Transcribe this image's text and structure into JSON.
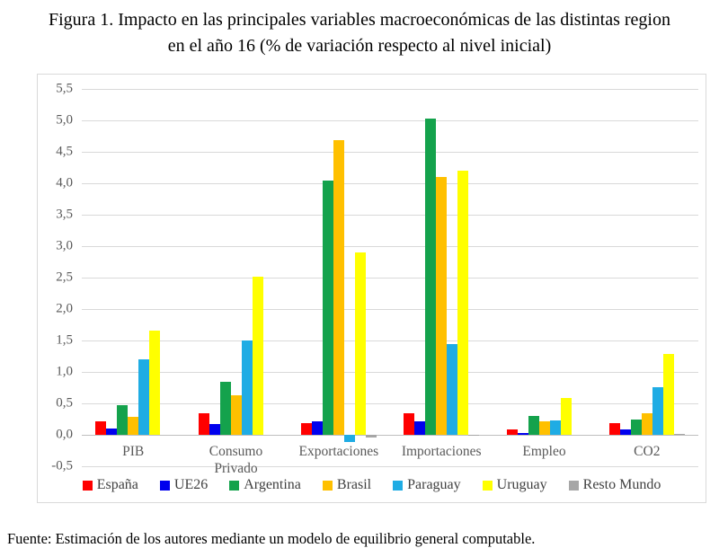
{
  "title": {
    "line1": "Figura 1. Impacto en las principales variables macroeconómicas de las distintas region",
    "line2": "en el año 16 (% de variación respecto al nivel inicial)"
  },
  "source_note": "Fuente: Estimación de los autores mediante un modelo de equilibrio general computable.",
  "chart_data": {
    "type": "bar",
    "title": "Figura 1. Impacto en las principales variables macroeconómicas de las distintas region en el año 16 (% de variación respecto al nivel inicial)",
    "categories": [
      "PIB",
      "Consumo Privado",
      "Exportaciones",
      "Importaciones",
      "Empleo",
      "CO2"
    ],
    "series": [
      {
        "name": "España",
        "color": "#ff0000",
        "values": [
          0.22,
          0.34,
          0.18,
          0.34,
          0.09,
          0.19
        ]
      },
      {
        "name": "UE26",
        "color": "#0000ee",
        "values": [
          0.1,
          0.17,
          0.21,
          0.21,
          0.03,
          0.09
        ]
      },
      {
        "name": "Argentina",
        "color": "#14a24c",
        "values": [
          0.47,
          0.85,
          4.04,
          5.03,
          0.3,
          0.25
        ]
      },
      {
        "name": "Brasil",
        "color": "#ffc000",
        "values": [
          0.29,
          0.63,
          4.68,
          4.1,
          0.22,
          0.35
        ]
      },
      {
        "name": "Paraguay",
        "color": "#1face4",
        "values": [
          1.2,
          1.5,
          -0.11,
          1.44,
          0.23,
          0.76
        ]
      },
      {
        "name": "Uruguay",
        "color": "#ffff00",
        "values": [
          1.66,
          2.52,
          2.9,
          4.2,
          0.58,
          1.29
        ]
      },
      {
        "name": "Resto Mundo",
        "color": "#a6a6a6",
        "values": [
          0.0,
          0.0,
          -0.04,
          -0.02,
          0.0,
          0.01
        ]
      }
    ],
    "y_tick_labels": [
      "5,5",
      "5,0",
      "4,5",
      "4,0",
      "3,5",
      "3,0",
      "2,5",
      "2,0",
      "1,5",
      "1,0",
      "0,5",
      "0,0",
      "-0,5"
    ],
    "ylim": [
      -0.5,
      5.5
    ],
    "y_step": 0.5,
    "xlabel": "",
    "ylabel": "",
    "grid": true,
    "legend_position": "bottom",
    "decimal_separator": ","
  }
}
